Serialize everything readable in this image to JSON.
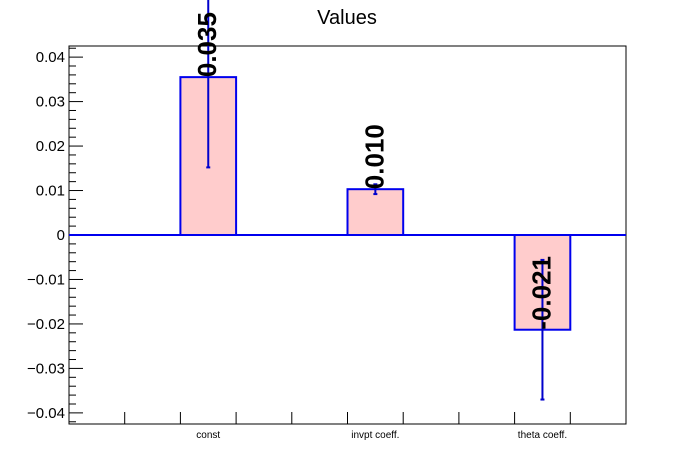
{
  "chart_data": {
    "type": "bar",
    "title": "Values",
    "xlabel": "",
    "ylabel": "",
    "categories": [
      "const",
      "invpt coeff.",
      "theta coeff."
    ],
    "values": [
      0.0355,
      0.0103,
      -0.0213
    ],
    "errors": [
      0.0203,
      0.0011,
      0.0157
    ],
    "value_labels": [
      "0.035",
      "0.010",
      "-0.021"
    ],
    "ylim": [
      -0.0425,
      0.0425
    ],
    "y_ticks": [
      -0.04,
      -0.03,
      -0.02,
      -0.01,
      0,
      0.01,
      0.02,
      0.03,
      0.04
    ],
    "y_tick_labels": [
      "−0.04",
      "−0.03",
      "−0.02",
      "−0.01",
      "0",
      "0.01",
      "0.02",
      "0.03",
      "0.04"
    ],
    "grid": false,
    "colors": {
      "bar_fill": "#ffcccc",
      "bar_edge": "#0000ee",
      "error_bar": "#0000cc",
      "zero_line": "#0000ee"
    }
  }
}
